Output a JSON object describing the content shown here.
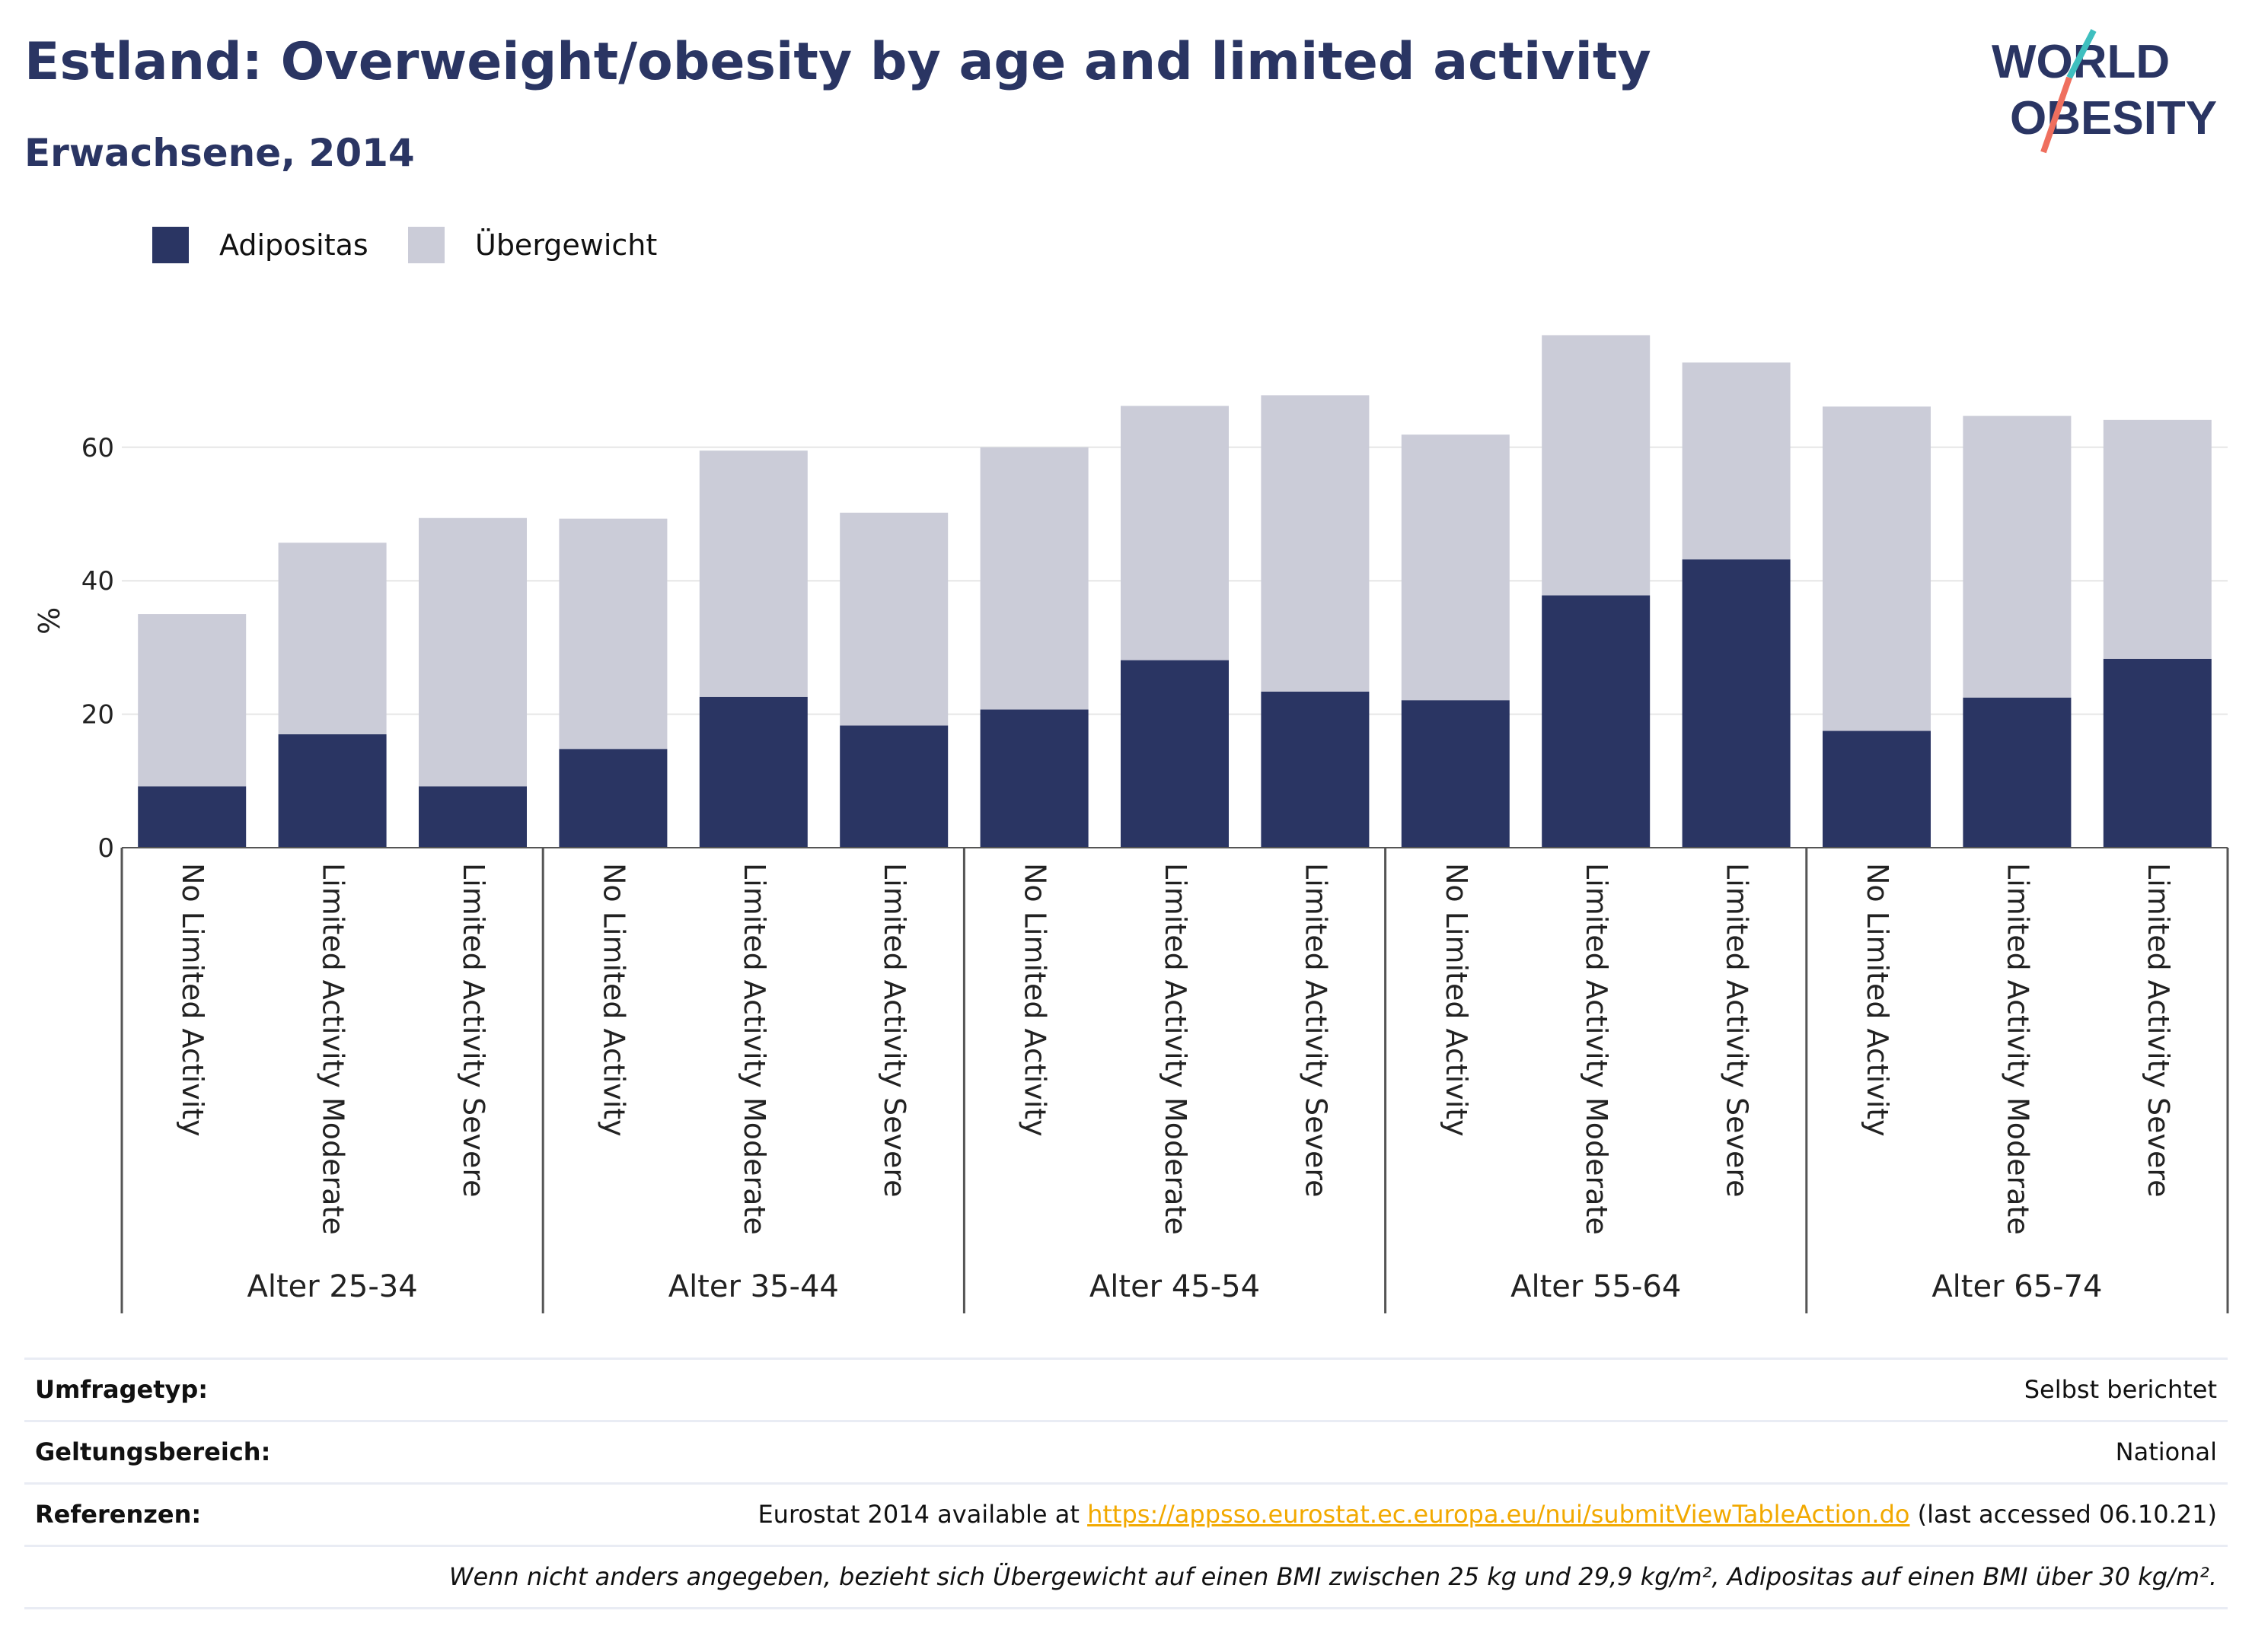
{
  "header": {
    "title": "Estland: Overweight/obesity by age and limited activity",
    "subtitle": "Erwachsene, 2014"
  },
  "logo": {
    "line1": "WORLD",
    "line2": "OBESITY",
    "colors": {
      "text": "#2a3563",
      "slash_top": "#3fbfbf",
      "slash_bottom": "#ef6f5e"
    }
  },
  "legend": {
    "items": [
      {
        "label": "Adipositas",
        "color": "#2a3563"
      },
      {
        "label": "Übergewicht",
        "color": "#cbccd8"
      }
    ]
  },
  "chart_data": {
    "type": "bar",
    "stacked": true,
    "ylabel": "%",
    "ylim": [
      0,
      80
    ],
    "yticks": [
      0,
      20,
      40,
      60
    ],
    "grid": true,
    "legend_position": "top-left",
    "groups": [
      "Alter 25-34",
      "Alter 35-44",
      "Alter 45-54",
      "Alter 55-64",
      "Alter 65-74"
    ],
    "categories": [
      "No Limited Activity",
      "Limited Activity Moderate",
      "Limited Activity Severe",
      "No Limited Activity",
      "Limited Activity Moderate",
      "Limited Activity Severe",
      "No Limited Activity",
      "Limited Activity Moderate",
      "Limited Activity Severe",
      "No Limited Activity",
      "Limited Activity Moderate",
      "Limited Activity Severe",
      "No Limited Activity",
      "Limited Activity Moderate",
      "Limited Activity Severe"
    ],
    "series": [
      {
        "name": "Adipositas",
        "color": "#2a3563",
        "values": [
          9.2,
          17.0,
          9.2,
          14.8,
          22.6,
          18.3,
          20.7,
          28.1,
          23.4,
          22.1,
          37.8,
          43.2,
          17.5,
          22.5,
          28.3
        ]
      },
      {
        "name": "Übergewicht",
        "color": "#cbccd8",
        "values": [
          25.8,
          28.7,
          40.2,
          34.5,
          36.9,
          31.9,
          39.3,
          38.1,
          44.4,
          39.8,
          39.0,
          29.5,
          48.6,
          42.2,
          35.8
        ]
      }
    ]
  },
  "meta": {
    "rows": [
      {
        "key": "Umfragetyp:",
        "value": "Selbst berichtet"
      },
      {
        "key": "Geltungsbereich:",
        "value": "National"
      }
    ],
    "references": {
      "key": "Referenzen:",
      "prefix": "Eurostat 2014 available at ",
      "link": "https://appsso.eurostat.ec.europa.eu/nui/submitViewTableAction.do",
      "suffix": " (last accessed 06.10.21)"
    },
    "note": "Wenn nicht anders angegeben, bezieht sich Übergewicht auf einen BMI zwischen 25 kg und 29,9 kg/m², Adipositas auf einen BMI über 30 kg/m²."
  }
}
